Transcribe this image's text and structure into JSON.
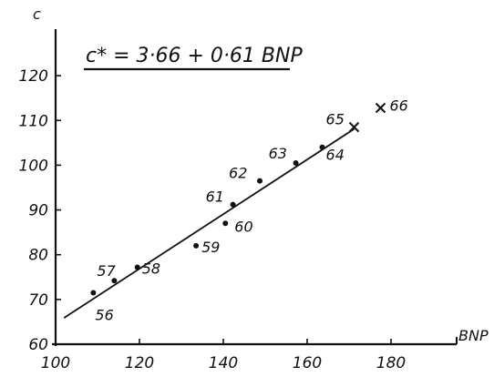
{
  "chart_data": {
    "type": "scatter",
    "title": "",
    "equation": "c* = 3·66 + 0·61 BNP",
    "xlabel": "BNP",
    "ylabel": "c",
    "xlim": [
      100,
      185
    ],
    "ylim": [
      60,
      125
    ],
    "x_ticks": [
      100,
      120,
      140,
      160,
      180
    ],
    "y_ticks": [
      60,
      70,
      80,
      90,
      100,
      110,
      120
    ],
    "grid": false,
    "points": [
      {
        "label": "56",
        "x": 109,
        "y": 71.5,
        "marker": "dot"
      },
      {
        "label": "57",
        "x": 114,
        "y": 74.2,
        "marker": "dot"
      },
      {
        "label": "58",
        "x": 119.5,
        "y": 77.2,
        "marker": "dot"
      },
      {
        "label": "59",
        "x": 133.5,
        "y": 82,
        "marker": "dot"
      },
      {
        "label": "60",
        "x": 140.5,
        "y": 87,
        "marker": "dot"
      },
      {
        "label": "61",
        "x": 142.3,
        "y": 91.2,
        "marker": "dot"
      },
      {
        "label": "62",
        "x": 148.7,
        "y": 96.5,
        "marker": "dot"
      },
      {
        "label": "63",
        "x": 157.3,
        "y": 100.5,
        "marker": "dot"
      },
      {
        "label": "64",
        "x": 163.6,
        "y": 104,
        "marker": "dot"
      },
      {
        "label": "65",
        "x": 171.2,
        "y": 108.5,
        "marker": "cross"
      },
      {
        "label": "66",
        "x": 177.5,
        "y": 112.8,
        "marker": "cross"
      }
    ],
    "regression_line": {
      "x_start": 102,
      "x_end": 171.2,
      "intercept": 3.66,
      "slope": 0.61
    }
  }
}
